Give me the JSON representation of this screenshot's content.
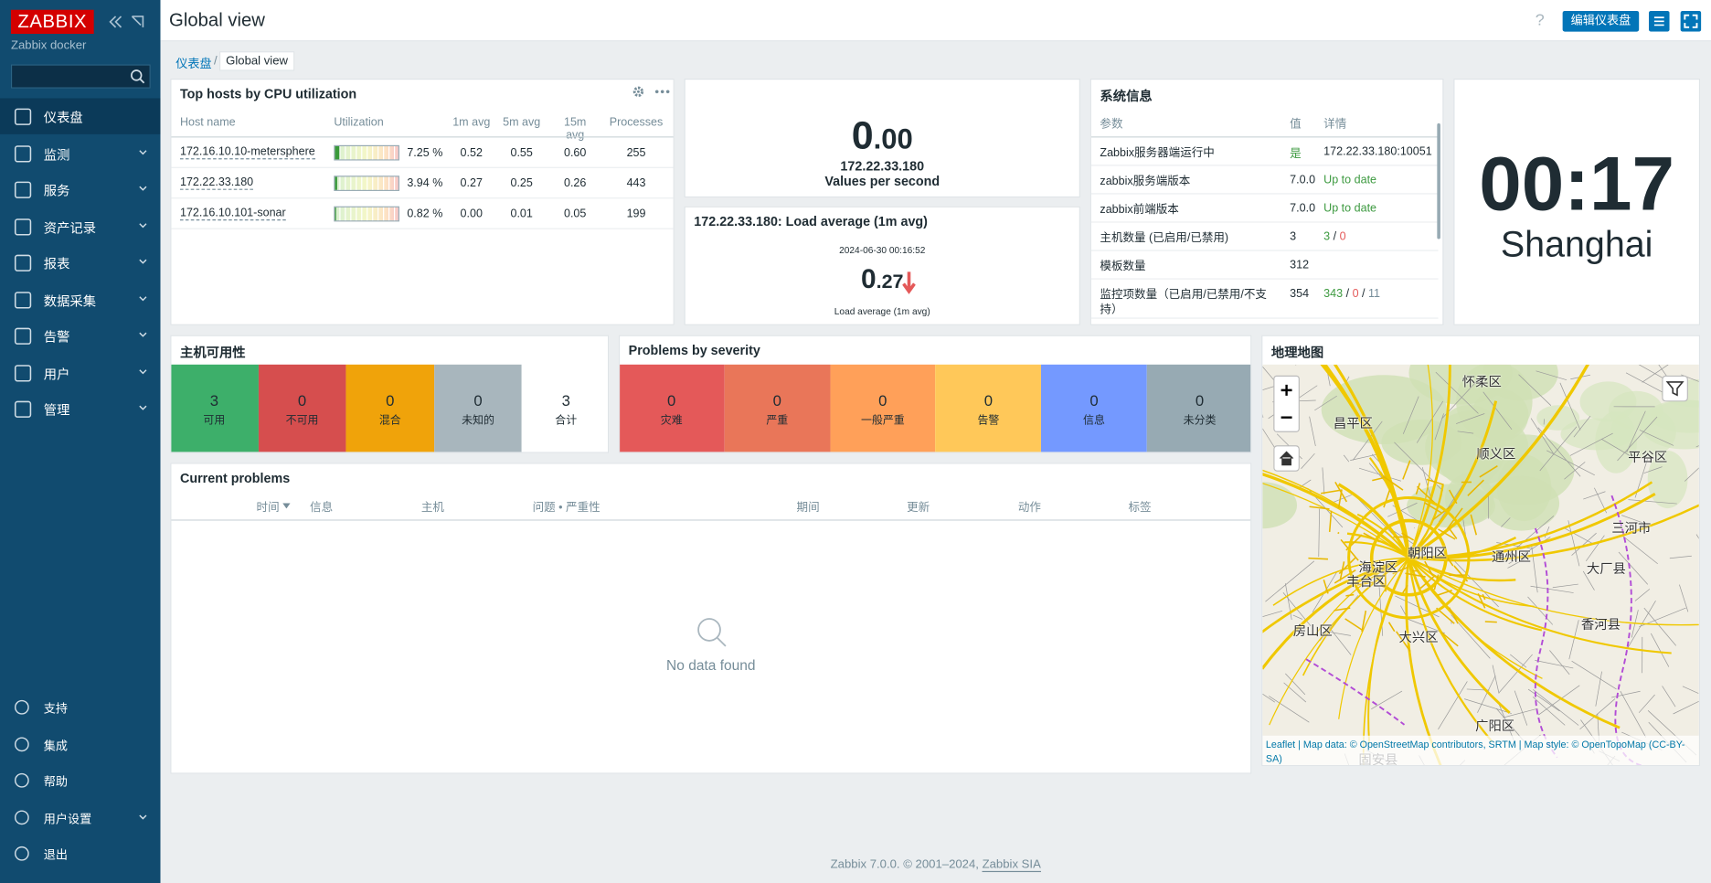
{
  "sidebar": {
    "logo": "ZABBIX",
    "server_name": "Zabbix docker",
    "menu": [
      "仪表盘",
      "监测",
      "服务",
      "资产记录",
      "报表",
      "数据采集",
      "告警",
      "用户",
      "管理"
    ],
    "bottom_menu": [
      "支持",
      "集成",
      "帮助",
      "用户设置",
      "退出"
    ]
  },
  "header": {
    "title": "Global view",
    "help": "?",
    "edit_button": "编辑仪表盘"
  },
  "breadcrumb": [
    "仪表盘",
    "Global view"
  ],
  "top_hosts": {
    "title": "Top hosts by CPU utilization",
    "columns": [
      "Host name",
      "Utilization",
      "1m avg",
      "5m avg",
      "15m avg",
      "Processes"
    ],
    "rows": [
      {
        "host": "172.16.10.10-metersphere",
        "utilization": 7.25,
        "utilization_label": "7.25 %",
        "avg_1m": "0.52",
        "avg_5m": "0.55",
        "avg_15m": "0.60",
        "processes": 255
      },
      {
        "host": "172.22.33.180",
        "utilization": 3.94,
        "utilization_label": "3.94 %",
        "avg_1m": "0.27",
        "avg_5m": "0.25",
        "avg_15m": "0.26",
        "processes": 443
      },
      {
        "host": "172.16.10.101-sonar",
        "utilization": 0.82,
        "utilization_label": "0.82 %",
        "avg_1m": "0.00",
        "avg_5m": "0.01",
        "avg_15m": "0.05",
        "processes": 199
      }
    ]
  },
  "values_per_second": {
    "value": "0",
    "decimals": ".00",
    "host": "172.22.33.180",
    "caption": "Values per second"
  },
  "load_average": {
    "title": "172.22.33.180: Load average (1m avg)",
    "time": "2024-06-30 00:16:52",
    "value": "0",
    "decimals": ".27",
    "caption": "Load average (1m avg)"
  },
  "system_info": {
    "title": "系统信息",
    "columns": [
      "参数",
      "值",
      "详情"
    ],
    "rows": [
      {
        "parameter": "Zabbix服务器端运行中",
        "value": "是",
        "value_color": "#3d9a40",
        "details": [
          "172.22.33.180:10051"
        ],
        "details_colors": [
          "#1f2c33"
        ]
      },
      {
        "parameter": "zabbix服务端版本",
        "value": "7.0.0",
        "details": [
          "Up to date"
        ],
        "details_colors": [
          "#3d9a40"
        ]
      },
      {
        "parameter": "zabbix前端版本",
        "value": "7.0.0",
        "details": [
          "Up to date"
        ],
        "details_colors": [
          "#3d9a40"
        ]
      },
      {
        "parameter": "主机数量 (已启用/已禁用)",
        "value": "3",
        "details": [
          "3",
          " / ",
          "0"
        ],
        "details_colors": [
          "#3d9a40",
          "#1f2c33",
          "#e45959"
        ]
      },
      {
        "parameter": "模板数量",
        "value": "312"
      },
      {
        "parameter": "监控项数量（已启用/已禁用/不支持）",
        "value": "354",
        "details": [
          "343",
          " / ",
          "0",
          " / ",
          "11"
        ],
        "details_colors": [
          "#3d9a40",
          "#1f2c33",
          "#e45959",
          "#1f2c33",
          "#768d99"
        ]
      }
    ]
  },
  "clock": {
    "time": "00:17",
    "city": "Shanghai"
  },
  "host_availability": {
    "title": "主机可用性",
    "cells": [
      {
        "count": 3,
        "label": "可用",
        "color": "#3daf6a"
      },
      {
        "count": 0,
        "label": "不可用",
        "color": "#d64e4e"
      },
      {
        "count": 0,
        "label": "混合",
        "color": "#f0a30a"
      },
      {
        "count": 0,
        "label": "未知的",
        "color": "#a8b6bd"
      },
      {
        "count": 3,
        "label": "合计"
      }
    ]
  },
  "problems_by_severity": {
    "title": "Problems by severity",
    "cells": [
      {
        "count": 0,
        "label": "灾难",
        "color": "#e45959"
      },
      {
        "count": 0,
        "label": "严重",
        "color": "#e97659"
      },
      {
        "count": 0,
        "label": "一般严重",
        "color": "#ffa059"
      },
      {
        "count": 0,
        "label": "告警",
        "color": "#ffc859"
      },
      {
        "count": 0,
        "label": "信息",
        "color": "#7499ff"
      },
      {
        "count": 0,
        "label": "未分类",
        "color": "#97aab3"
      }
    ]
  },
  "current_problems": {
    "title": "Current problems",
    "columns": [
      "时间",
      "信息",
      "主机",
      "问题 • 严重性",
      "期间",
      "更新",
      "动作",
      "标签"
    ],
    "empty": "No data found"
  },
  "geomap": {
    "title": "地理地图",
    "places": [
      "怀柔区",
      "昌平区",
      "顺义区",
      "平谷区",
      "海淀区",
      "朝阳区",
      "通州区",
      "三河市",
      "丰台区",
      "大厂县",
      "房山区",
      "大兴区",
      "香河县",
      "广阳区",
      "固安县"
    ],
    "attribution": "Leaflet | Map data: © OpenStreetMap contributors, SRTM | Map style: © OpenTopoMap (CC-BY-SA)"
  },
  "footer": {
    "text": "Zabbix 7.0.0. © 2001–2024,",
    "link": "Zabbix SIA"
  }
}
